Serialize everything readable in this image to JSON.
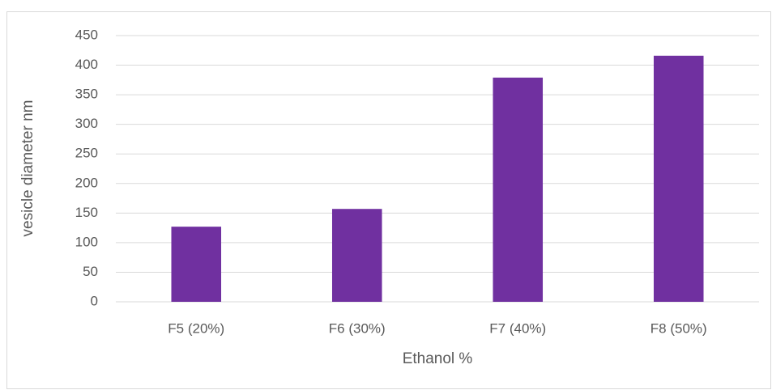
{
  "chart_data": {
    "type": "bar",
    "x_label": "Ethanol %",
    "y_label": "vesicle diameter nm",
    "categories": [
      "F5 (20%)",
      "F6 (30%)",
      "F7 (40%)",
      "F8 (50%)"
    ],
    "values": [
      127,
      157,
      379,
      416
    ],
    "color": "#7030a0",
    "ylim": [
      0,
      450
    ],
    "yticks": [
      0,
      50,
      100,
      150,
      200,
      250,
      300,
      350,
      400,
      450
    ],
    "grid": true
  }
}
